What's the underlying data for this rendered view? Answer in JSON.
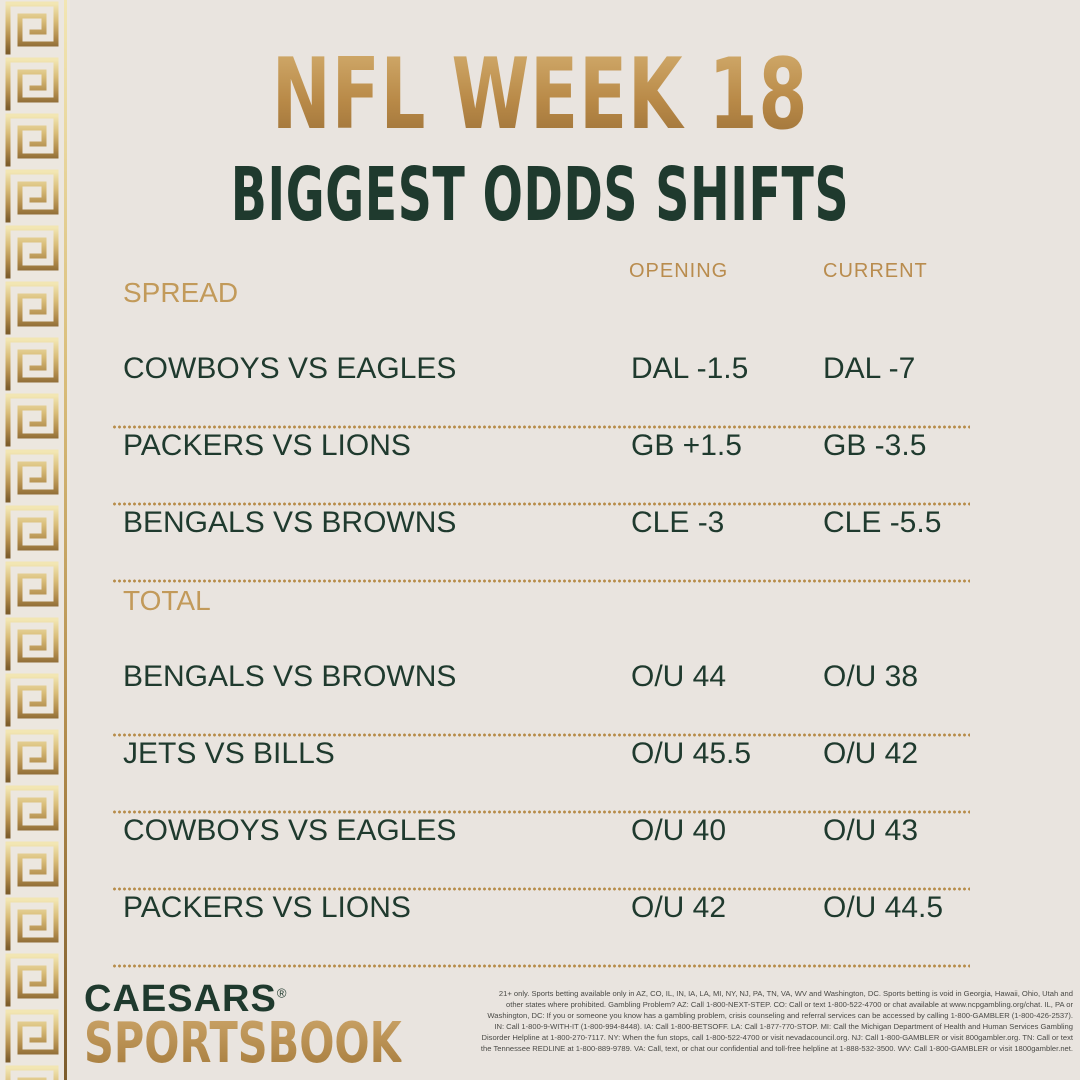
{
  "title_line1": "NFL WEEK 18",
  "title_line2": "BIGGEST ODDS SHIFTS",
  "columns": {
    "opening": "OPENING",
    "current": "CURRENT"
  },
  "sections": [
    {
      "label": "SPREAD",
      "rows": [
        {
          "matchup": "COWBOYS VS EAGLES",
          "opening": "DAL -1.5",
          "current": "DAL -7"
        },
        {
          "matchup": "PACKERS VS LIONS",
          "opening": "GB +1.5",
          "current": "GB -3.5"
        },
        {
          "matchup": "BENGALS VS BROWNS",
          "opening": "CLE -3",
          "current": "CLE -5.5"
        }
      ]
    },
    {
      "label": "TOTAL",
      "rows": [
        {
          "matchup": "BENGALS VS BROWNS",
          "opening": "O/U 44",
          "current": "O/U 38"
        },
        {
          "matchup": "JETS VS BILLS",
          "opening": "O/U 45.5",
          "current": "O/U 42"
        },
        {
          "matchup": "COWBOYS VS EAGLES",
          "opening": "O/U 40",
          "current": "O/U 43"
        },
        {
          "matchup": "PACKERS VS LIONS",
          "opening": "O/U 42",
          "current": "O/U 44.5"
        }
      ]
    }
  ],
  "logo": {
    "caesars": "CAESARS",
    "registered": "®",
    "sportsbook": "SPORTSBOOK"
  },
  "disclaimer": "21+ only. Sports betting available only in AZ, CO, IL, IN, IA, LA, MI, NY, NJ, PA, TN, VA, WV and Washington, DC. Sports betting is void in Georgia, Hawaii, Ohio, Utah and other states where prohibited. Gambling Problem? AZ: Call 1-800-NEXT-STEP. CO: Call or text 1-800-522-4700 or chat available at www.ncpgambling.org/chat. IL, PA or Washington, DC: If you or someone you know has a gambling problem, crisis counseling and referral services can be accessed by calling 1-800-GAMBLER (1-800-426-2537). IN: Call 1-800-9-WITH-IT (1-800-994-8448). IA: Call 1-800-BETSOFF. LA: Call 1-877-770-STOP. MI: Call the Michigan Department of Health and Human Services Gambling Disorder Helpline at 1-800-270-7117. NY: When the fun stops, call 1-800-522-4700 or visit nevadacouncil.org. NJ: Call 1-800-GAMBLER or visit 800gambler.org. TN: Call or text the Tennessee REDLINE at 1-800-889-9789. VA: Call, text, or chat our confidential and toll-free helpline at 1-888-532-3500. WV: Call 1-800-GAMBLER or visit 1800gambler.net.",
  "colors": {
    "background": "#e9e4df",
    "gold": "#b98c4e",
    "dark_green": "#1f3a2e"
  }
}
